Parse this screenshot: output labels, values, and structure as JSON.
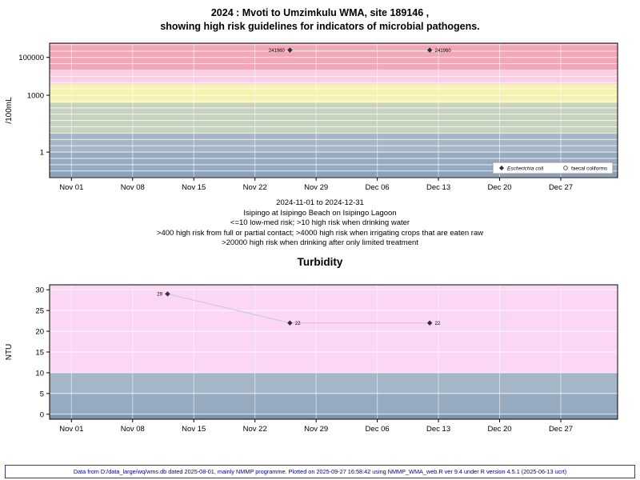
{
  "page": {
    "background": "#ffffff",
    "footer": "Data from D:/data_large/wq/wms.db dated 2025-08-01, mainly NMMP programme. Plotted on 2025-09-27 16:58:42 using NMMP_WMA_web.R ver 9.4 under R version 4.5.1 (2025-06-13 ucrt)",
    "footer_color": "#00008b"
  },
  "chart_data": [
    {
      "type": "scatter",
      "title": "2024 : Mvoti to Umzimkulu WMA, site 189146 ,",
      "subtitle": "showing high risk guidelines for indicators of microbial pathogens.",
      "ylabel": "/100mL",
      "yscale": "log10",
      "ylim": [
        0.045,
        560000
      ],
      "yticks": [
        1,
        1000,
        100000
      ],
      "ytick_labels": [
        "1",
        "1000",
        "100000"
      ],
      "xdomain_days": [
        -2.5,
        62.5
      ],
      "xtick_days": [
        0,
        7,
        14,
        21,
        28,
        35,
        42,
        49,
        56
      ],
      "xtick_labels": [
        "Nov 01",
        "Nov 08",
        "Nov 15",
        "Nov 22",
        "Nov 29",
        "Dec 06",
        "Dec 13",
        "Dec 20",
        "Dec 27"
      ],
      "bands": [
        {
          "from": 0.045,
          "to": 0.1,
          "color": "#8ba1b7"
        },
        {
          "from": 0.1,
          "to": 1,
          "color": "#97abc0"
        },
        {
          "from": 1,
          "to": 10,
          "color": "#a4b6c8"
        },
        {
          "from": 10,
          "to": 400,
          "color": "#c6d3bd"
        },
        {
          "from": 400,
          "to": 4000,
          "color": "#f6f2b0"
        },
        {
          "from": 4000,
          "to": 20000,
          "color": "#f8cfe3"
        },
        {
          "from": 20000,
          "to": 560000,
          "color": "#f2a6b6"
        }
      ],
      "series": [
        {
          "name": "Escherichia coli",
          "marker": "diamond",
          "color": "#2f2f3f",
          "points": [
            {
              "day": 25,
              "value": 241960,
              "label": "241960",
              "label_side": "left"
            },
            {
              "day": 41,
              "value": 241960,
              "label": "241960",
              "label_side": "right"
            }
          ]
        },
        {
          "name": "faecal coliforms",
          "marker": "circle-open",
          "color": "#2f2f3f",
          "points": []
        }
      ],
      "legend": {
        "entries": [
          {
            "marker": "diamond",
            "label": "Escherichia coli",
            "italic": true
          },
          {
            "marker": "circle-open",
            "label": "faecal coliforms",
            "italic": false
          }
        ]
      },
      "captions": [
        "2024-11-01 to 2024-12-31",
        "Isipingo at Isipingo Beach on Isipingo Lagoon",
        "<=10 low-med risk; >10 high risk when drinking water",
        ">400 high risk from full or partial contact; >4000 high risk when irrigating crops that are eaten raw",
        ">20000 high risk when drinking after only limited treatment"
      ]
    },
    {
      "type": "scatter",
      "title": "Turbidity",
      "ylabel": "NTU",
      "yscale": "linear",
      "ylim": [
        -1.2,
        31.2
      ],
      "yticks": [
        0,
        5,
        10,
        15,
        20,
        25,
        30
      ],
      "ytick_labels": [
        "0",
        "5",
        "10",
        "15",
        "20",
        "25",
        "30"
      ],
      "xdomain_days": [
        -2.5,
        62.5
      ],
      "xtick_days": [
        0,
        7,
        14,
        21,
        28,
        35,
        42,
        49,
        56
      ],
      "xtick_labels": [
        "Nov 01",
        "Nov 08",
        "Nov 15",
        "Nov 22",
        "Nov 29",
        "Dec 06",
        "Dec 13",
        "Dec 20",
        "Dec 27"
      ],
      "bands": [
        {
          "from": -1.2,
          "to": 0,
          "color": "#7d94ab"
        },
        {
          "from": 0,
          "to": 5,
          "color": "#97abc0"
        },
        {
          "from": 5,
          "to": 10,
          "color": "#a4b6c8"
        },
        {
          "from": 10,
          "to": 31.2,
          "color": "#fbd7f5"
        }
      ],
      "series": [
        {
          "name": "Turbidity",
          "marker": "diamond",
          "color": "#2f2f3f",
          "points": [
            {
              "day": 11,
              "value": 29,
              "label": "29",
              "label_side": "left"
            },
            {
              "day": 25,
              "value": 22,
              "label": "22",
              "label_side": "right"
            },
            {
              "day": 41,
              "value": 22,
              "label": "22",
              "label_side": "right"
            }
          ]
        }
      ]
    }
  ]
}
